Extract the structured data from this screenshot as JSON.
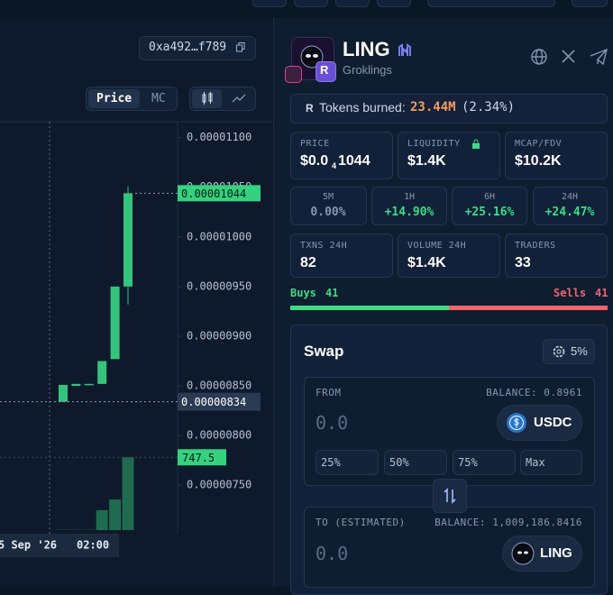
{
  "chart_panel": {
    "address": "0xa492…f789",
    "toggle": [
      "Price",
      "MC"
    ],
    "price_chart": {
      "type": "candlestick",
      "ylim": [
        7.03e-06,
        1.116e-05
      ],
      "yticks": [
        {
          "value": 1.1e-05,
          "label": "0.00001100"
        },
        {
          "value": 1.05e-05,
          "label": "0.00001050"
        },
        {
          "value": 1e-05,
          "label": "0.00001000"
        },
        {
          "value": 9.5e-06,
          "label": "0.00000950"
        },
        {
          "value": 9e-06,
          "label": "0.00000900"
        },
        {
          "value": 8.5e-06,
          "label": "0.00000850"
        },
        {
          "value": 8e-06,
          "label": "0.00000800"
        },
        {
          "value": 7.5e-06,
          "label": "0.00000750"
        }
      ],
      "candles": [
        {
          "open": 8.34e-06,
          "high": 8.51e-06,
          "low": 8.34e-06,
          "close": 8.51e-06
        },
        {
          "open": 8.5e-06,
          "high": 8.52e-06,
          "low": 8.5e-06,
          "close": 8.52e-06
        },
        {
          "open": 8.52e-06,
          "high": 8.52e-06,
          "low": 8.52e-06,
          "close": 8.52e-06
        },
        {
          "open": 8.52e-06,
          "high": 8.75e-06,
          "low": 8.52e-06,
          "close": 8.75e-06
        },
        {
          "open": 8.77e-06,
          "high": 9.5e-06,
          "low": 8.77e-06,
          "close": 9.5e-06
        },
        {
          "open": 9.5e-06,
          "high": 1.051e-05,
          "low": 9.32e-06,
          "close": 1.044e-05
        }
      ],
      "volumes": [
        4,
        3,
        3,
        205,
        314,
        747.5
      ],
      "volume_ylim": [
        0,
        1000
      ],
      "color": "#34c47c",
      "volume_color": "#1f6b4f"
    },
    "x_labels": [
      "5 Sep '26",
      "02:00"
    ]
  },
  "token": {
    "name": "LING",
    "subtitle": "Groklings",
    "badge": "R"
  },
  "burn": {
    "badge": "R",
    "label": "Tokens burned:",
    "amount": "23.44M",
    "percent": "(2.34%)"
  },
  "price": {
    "label": "PRICE",
    "prefix": "$0.0",
    "zeros": "4",
    "digits": "1044"
  },
  "stats": [
    {
      "label": "LIQUIDITY",
      "value": "$1.4K"
    },
    {
      "label": "MCAP/FDV",
      "value": "$10.2K"
    },
    {
      "label": "TXNS 24H",
      "value": 82
    },
    {
      "label": "VOLUME 24H",
      "value": "$1.4K"
    },
    {
      "label": "TRADERS",
      "value": 33
    }
  ],
  "changes": [
    {
      "label": "5M",
      "value": "0.00%"
    },
    {
      "label": "1H",
      "value": "+14.90%"
    },
    {
      "label": "6H",
      "value": "+25.16%"
    },
    {
      "label": "24H",
      "value": "+24.47%"
    }
  ],
  "buys": {
    "label": "Buys",
    "count": 41
  },
  "sells": {
    "label": "Sells",
    "count": 41
  },
  "swap": {
    "title": "Swap",
    "slippage": "5%",
    "from": {
      "label": "FROM",
      "balance": "BALANCE: 0.8961",
      "amount": "0.0",
      "token": "USDC"
    },
    "presets": [
      "25%",
      "50%",
      "75%",
      "Max"
    ],
    "to": {
      "label": "TO (ESTIMATED)",
      "balance": "BALANCE: 1,009,186.8416",
      "amount": "0.0",
      "token": "LING"
    }
  }
}
